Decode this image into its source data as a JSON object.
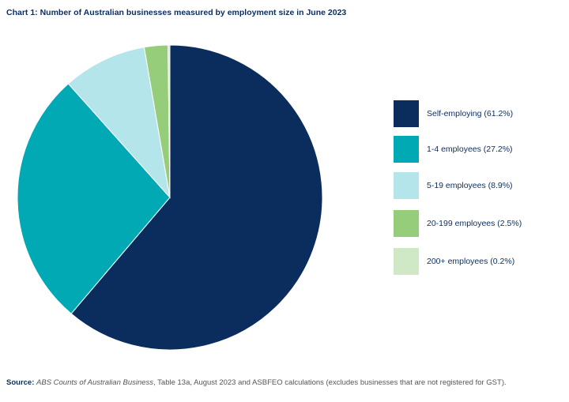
{
  "chart_data": {
    "type": "pie",
    "title": "Chart 1: Number of Australian businesses measured by employment size in June 2023",
    "categories": [
      "Self-employing (61.2%)",
      "1-4 employees (27.2%)",
      "5-19 employees (8.9%)",
      "20-199 employees (2.5%)",
      "200+ employees (0.2%)"
    ],
    "values": [
      61.2,
      27.2,
      8.9,
      2.5,
      0.2
    ],
    "colors": [
      "#0b2d5e",
      "#00a9b4",
      "#b4e5ea",
      "#95cd7b",
      "#cfe9c6"
    ],
    "legend": "right",
    "source": {
      "label": "Source:",
      "title": "ABS Counts of Australian Business",
      "text": ", Table 13a, August 2023 and ASBFEO calculations (excludes businesses that are not registered for GST)."
    }
  }
}
